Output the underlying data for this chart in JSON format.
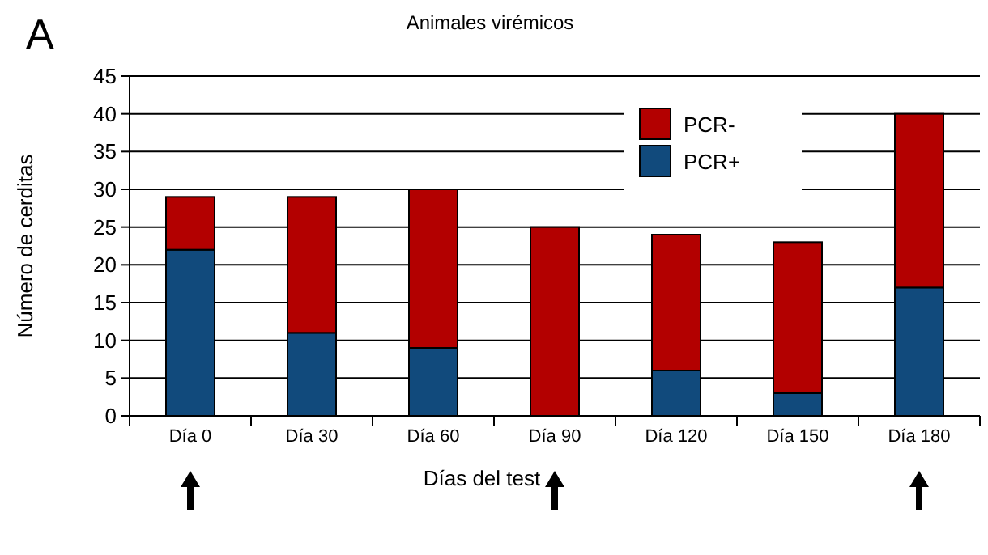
{
  "chart_data": {
    "type": "bar",
    "title": "Animales virémicos",
    "xlabel": "Días del test",
    "ylabel": "Número de cerditas",
    "annotations": [
      "A"
    ],
    "categories": [
      "Día 0",
      "Día 30",
      "Día 60",
      "Día 90",
      "Día 120",
      "Día 150",
      "Día 180"
    ],
    "series": [
      {
        "name": "PCR+",
        "color": "#114a7c",
        "values": [
          22,
          11,
          9,
          0,
          6,
          3,
          17
        ]
      },
      {
        "name": "PCR-",
        "color": "#b30000",
        "values": [
          7,
          18,
          21,
          25,
          18,
          20,
          23
        ]
      }
    ],
    "stacked": true,
    "ylim": [
      0,
      45
    ],
    "yticks": [
      0,
      5,
      10,
      15,
      20,
      25,
      30,
      35,
      40,
      45
    ],
    "grid": "y",
    "legend": "top right"
  }
}
